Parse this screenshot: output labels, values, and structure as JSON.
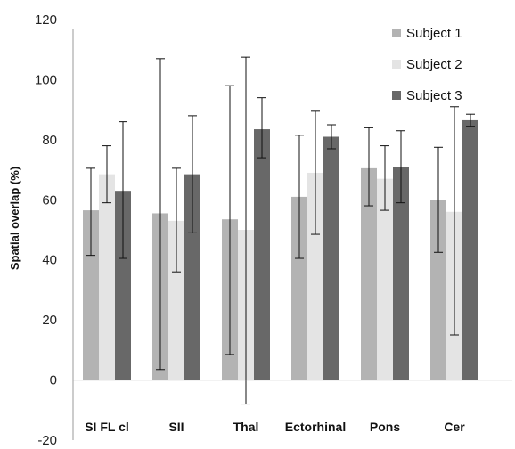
{
  "chart_data": {
    "type": "bar",
    "title": "",
    "xlabel": "",
    "ylabel": "Spatial overlap (%)",
    "ylim": [
      -20,
      120
    ],
    "yticks": [
      -20,
      0,
      20,
      40,
      60,
      80,
      100,
      120
    ],
    "grid": false,
    "legend_position": "top-right",
    "categories": [
      "SI FL cl",
      "SII",
      "Thal",
      "Ectorhinal",
      "Pons",
      "Cer"
    ],
    "series": [
      {
        "name": "Subject 1",
        "color": "#b3b3b3",
        "values": [
          56.5,
          55.5,
          53.5,
          61,
          70.5,
          60
        ],
        "err_low": [
          41.5,
          3.5,
          8.5,
          40.5,
          58,
          42.5
        ],
        "err_high": [
          70.5,
          107,
          98,
          81.5,
          84,
          77.5
        ]
      },
      {
        "name": "Subject 2",
        "color": "#e4e4e4",
        "values": [
          68.5,
          53,
          50,
          69,
          67,
          56
        ],
        "err_low": [
          59,
          36,
          -8,
          48.5,
          56.5,
          15
        ],
        "err_high": [
          78,
          70.5,
          107.5,
          89.5,
          78,
          91
        ]
      },
      {
        "name": "Subject 3",
        "color": "#686868",
        "values": [
          63,
          68.5,
          83.5,
          81,
          71,
          86.5
        ],
        "err_low": [
          40.5,
          49,
          74,
          77,
          59,
          84.5
        ],
        "err_high": [
          86,
          88,
          94,
          85,
          83,
          88.5
        ]
      }
    ]
  }
}
